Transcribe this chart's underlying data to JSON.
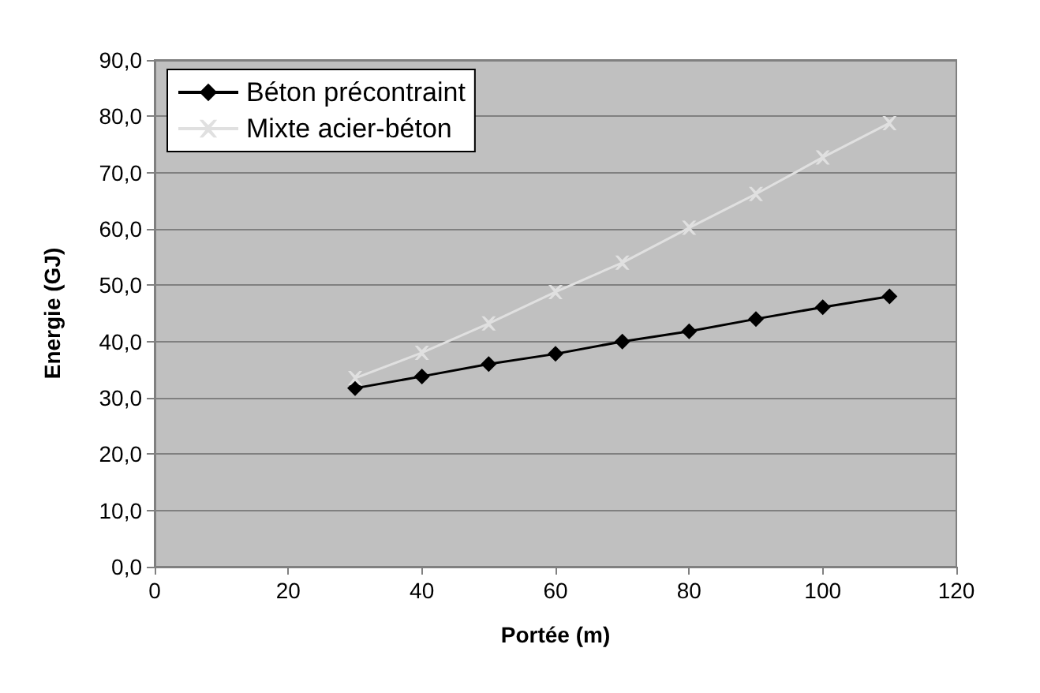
{
  "chart_data": {
    "type": "line",
    "xlabel": "Portée (m)",
    "ylabel": "Energie (GJ)",
    "x": [
      30,
      40,
      50,
      60,
      70,
      80,
      90,
      100,
      110
    ],
    "xlim": [
      0,
      120
    ],
    "xticks": [
      0,
      20,
      40,
      60,
      80,
      100,
      120
    ],
    "ylim": [
      0,
      90
    ],
    "yticks": [
      {
        "value": 0,
        "label": "0,0"
      },
      {
        "value": 10,
        "label": "10,0"
      },
      {
        "value": 20,
        "label": "20,0"
      },
      {
        "value": 30,
        "label": "30,0"
      },
      {
        "value": 40,
        "label": "40,0"
      },
      {
        "value": 50,
        "label": "50,0"
      },
      {
        "value": 60,
        "label": "60,0"
      },
      {
        "value": 70,
        "label": "70,0"
      },
      {
        "value": 80,
        "label": "80,0"
      },
      {
        "value": 90,
        "label": "90,0"
      }
    ],
    "grid": "y",
    "legend": "top left",
    "series": [
      {
        "name": "Béton précontraint",
        "color": "#000000",
        "marker": "diamond",
        "values": [
          31.7,
          33.8,
          36.0,
          37.8,
          40.0,
          41.8,
          44.0,
          46.1,
          48.0
        ]
      },
      {
        "name": "Mixte acier-béton",
        "color": "#e0e0e0",
        "marker": "cross",
        "values": [
          33.5,
          38.0,
          43.2,
          48.8,
          54.0,
          60.2,
          66.2,
          72.7,
          78.8
        ]
      }
    ]
  }
}
